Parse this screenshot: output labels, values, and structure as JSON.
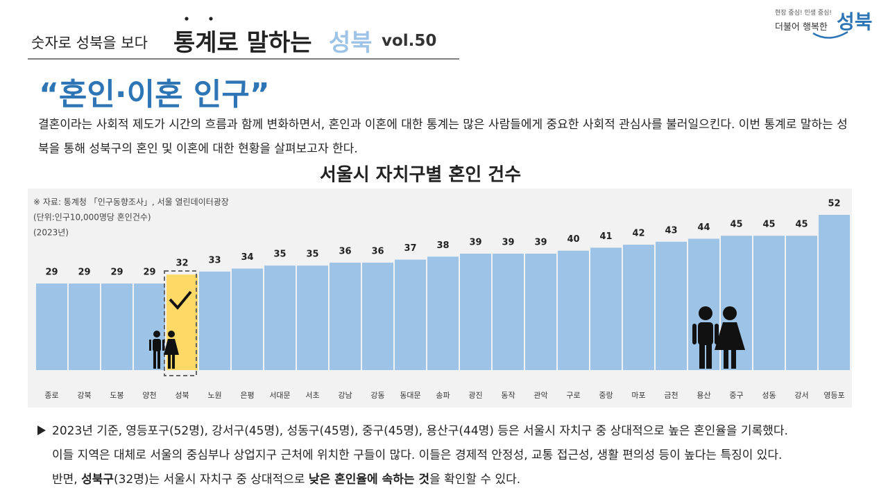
{
  "header": {
    "kicker": "숫자로 성북을 보다",
    "series_title": "통계로 말하는",
    "series_brand": "성북",
    "volume": "vol.50"
  },
  "logo": {
    "slogan": "현장 중심! 민생 중심!",
    "tagline": "더불어 행복한",
    "name": "성북"
  },
  "title": "“혼인·이혼 인구”",
  "intro": "결혼이라는 사회적 제도가 시간의 흐름과 함께 변화하면서, 혼인과 이혼에 대한 통계는 많은 사람들에게 중요한 사회적 관심사를 불러일으킨다. 이번 통계로 말하는 성북을 통해 성북구의 혼인 및 이혼에 대한 현황을 살펴보고자 한다.",
  "chart_data": {
    "type": "bar",
    "title": "서울시 자치구별 혼인 건수",
    "notes": [
      "※ 자료: 통계청 「인구동향조사」, 서울 열린데이터광장",
      "(단위:인구10,000명당 혼인건수)",
      "(2023년)"
    ],
    "categories": [
      "종로",
      "강북",
      "도봉",
      "양천",
      "성북",
      "노원",
      "은평",
      "서대문",
      "서초",
      "강남",
      "강동",
      "동대문",
      "송파",
      "광진",
      "동작",
      "관악",
      "구로",
      "중랑",
      "마포",
      "금천",
      "용산",
      "중구",
      "성동",
      "강서",
      "영등포"
    ],
    "values": [
      29,
      29,
      29,
      29,
      32,
      33,
      34,
      35,
      35,
      36,
      36,
      37,
      38,
      39,
      39,
      39,
      40,
      41,
      42,
      43,
      44,
      45,
      45,
      45,
      52
    ],
    "colors": [
      "#9dc3e6",
      "#9dc3e6",
      "#9dc3e6",
      "#9dc3e6",
      "#ffd966",
      "#9dc3e6",
      "#9dc3e6",
      "#9dc3e6",
      "#9dc3e6",
      "#9dc3e6",
      "#9dc3e6",
      "#9dc3e6",
      "#9dc3e6",
      "#9dc3e6",
      "#9dc3e6",
      "#9dc3e6",
      "#9dc3e6",
      "#9dc3e6",
      "#9dc3e6",
      "#9dc3e6",
      "#9dc3e6",
      "#9dc3e6",
      "#9dc3e6",
      "#9dc3e6",
      "#9dc3e6"
    ],
    "background": "#f2f2f2"
  },
  "summary": [
    [
      {
        "text": "2023년 기준, 영등포구(52명), 강서구(45명), 성동구(45명), 중구(45명), 용산구(44명) 등은 서울시 자치구 중 상대적으로 높은 혼인율을 기록했다."
      }
    ],
    [
      {
        "text": "이들 지역은 대체로 서울의 중심부나 상업지구 근처에 위치한 구들이 많다. 이들은 경제적 안정성, 교통 접근성, 생활 편의성 등이 높다는 특징이 있다."
      }
    ],
    [
      {
        "text": "반면, "
      },
      {
        "text": "성북구",
        "bold": true
      },
      {
        "text": "(32명)는 서울시 자치구 중 상대적으로 "
      },
      {
        "text": "낮은 혼인율에 속하는 것",
        "bold": true
      },
      {
        "text": "을 확인할 수 있다."
      }
    ]
  ]
}
